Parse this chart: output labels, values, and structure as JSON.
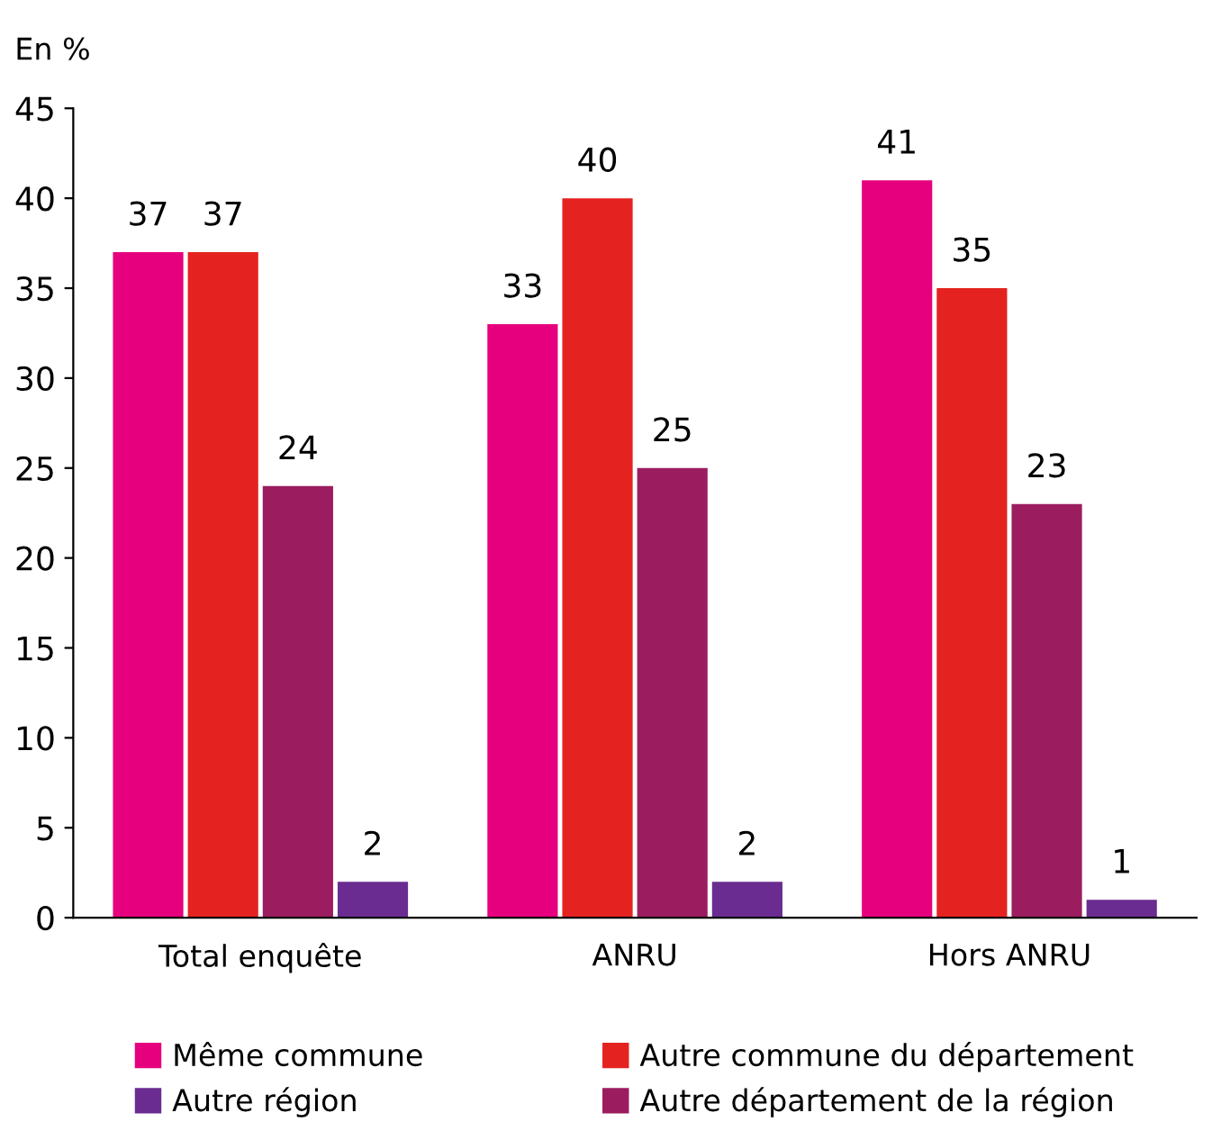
{
  "chart_data": {
    "type": "bar",
    "ylabel": "En %",
    "categories": [
      "Total enquête",
      "ANRU",
      "Hors ANRU"
    ],
    "series": [
      {
        "name": "Même commune",
        "color": "#e6007e",
        "values": [
          37,
          33,
          41
        ]
      },
      {
        "name": "Autre commune du département",
        "color": "#e42320",
        "values": [
          37,
          40,
          35
        ]
      },
      {
        "name": "Autre département de la région",
        "color": "#9b1d5f",
        "values": [
          24,
          25,
          23
        ]
      },
      {
        "name": "Autre région",
        "color": "#6a2c91",
        "values": [
          2,
          2,
          1
        ]
      }
    ],
    "ylim": [
      0,
      45
    ],
    "yticks": [
      0,
      5,
      10,
      15,
      20,
      25,
      30,
      35,
      40,
      45
    ],
    "data_labels": true,
    "legend": "bottom",
    "grid": false
  }
}
